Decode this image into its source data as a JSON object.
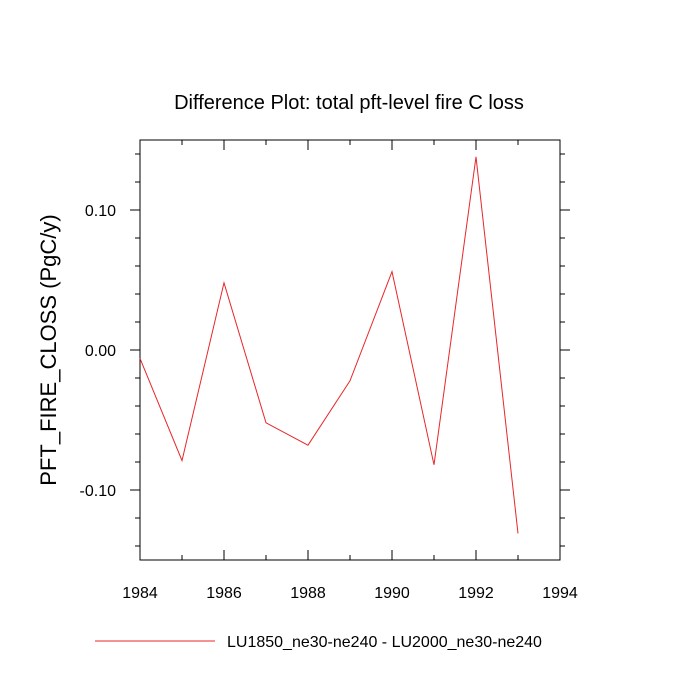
{
  "chart_data": {
    "type": "line",
    "title": "Difference Plot: total pft-level fire C loss",
    "xlabel": "",
    "ylabel": "PFT_FIRE_CLOSS  (PgC/y)",
    "xlim": [
      1984,
      1994
    ],
    "ylim": [
      -0.15,
      0.15
    ],
    "x_ticks": [
      1984,
      1986,
      1988,
      1990,
      1992,
      1994
    ],
    "x_tick_labels": [
      "1984",
      "1986",
      "1988",
      "1990",
      "1992",
      "1994"
    ],
    "y_ticks": [
      -0.1,
      0.0,
      0.1
    ],
    "y_tick_labels": [
      "-0.10",
      "0.00",
      "0.10"
    ],
    "grid": false,
    "legend_position": "bottom",
    "series": [
      {
        "name": "LU1850_ne30-ne240 - LU2000_ne30-ne240",
        "color": "#e8262a",
        "x": [
          1984,
          1985,
          1986,
          1987,
          1988,
          1989,
          1990,
          1991,
          1992,
          1993
        ],
        "y": [
          -0.006,
          -0.079,
          0.048,
          -0.052,
          -0.068,
          -0.022,
          0.056,
          -0.082,
          0.138,
          -0.131
        ]
      }
    ]
  }
}
